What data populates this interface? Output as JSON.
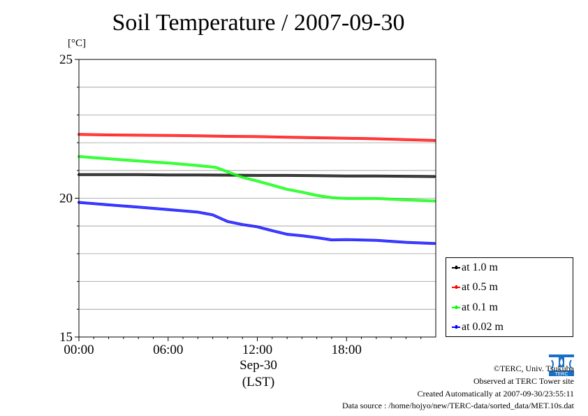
{
  "title": "Soil Temperature / 2007-09-30",
  "unit_label": "[°C]",
  "x_date_label": "Sep-30",
  "x_timezone_label": "(LST)",
  "footer": {
    "copyright": "©TERC, Univ. Tsukuba",
    "site": "Observed at TERC Tower site",
    "created": "Created Automatically at 2007-09-30/23:55:11",
    "source": "Data source : /home/hojyo/new/TERC-data/sorted_data/MET.10s.dat"
  },
  "logo_text": "TERC",
  "chart_data": {
    "type": "line",
    "title": "Soil Temperature / 2007-09-30",
    "ylabel": "[°C]",
    "xlabel": "Sep-30 (LST)",
    "x_unit": "hours",
    "xlim": [
      0,
      24
    ],
    "ylim": [
      15,
      25
    ],
    "x_ticks": [
      0,
      6,
      12,
      18
    ],
    "x_tick_labels": [
      "00:00",
      "06:00",
      "12:00",
      "18:00"
    ],
    "y_ticks": [
      15,
      20,
      25
    ],
    "y_tick_labels": [
      "15",
      "20",
      "25"
    ],
    "y_minor_ticks": [
      16,
      17,
      18,
      19,
      21,
      22,
      23,
      24
    ],
    "grid": true,
    "legend_position": "bottom-right, outside plot",
    "series": [
      {
        "name": "at 1.0 m",
        "color": "#000000",
        "x": [
          0,
          2,
          4,
          6,
          8,
          10,
          12,
          14,
          16,
          18,
          20,
          22,
          23.9
        ],
        "y": [
          20.85,
          20.85,
          20.85,
          20.84,
          20.84,
          20.83,
          20.82,
          20.82,
          20.81,
          20.8,
          20.8,
          20.79,
          20.78
        ]
      },
      {
        "name": "at 0.5 m",
        "color": "#ff0000",
        "x": [
          0,
          2,
          4,
          6,
          8,
          10,
          12,
          14,
          16,
          18,
          20,
          22,
          23.9
        ],
        "y": [
          22.3,
          22.28,
          22.27,
          22.26,
          22.25,
          22.23,
          22.22,
          22.2,
          22.18,
          22.16,
          22.14,
          22.11,
          22.08
        ]
      },
      {
        "name": "at 0.1 m",
        "color": "#00ff00",
        "x": [
          0,
          2,
          4,
          6,
          8,
          9.2,
          10,
          11,
          12,
          13,
          14,
          15,
          16,
          17,
          18,
          20,
          22,
          23.9
        ],
        "y": [
          21.5,
          21.42,
          21.34,
          21.27,
          21.18,
          21.11,
          20.95,
          20.75,
          20.62,
          20.47,
          20.32,
          20.22,
          20.1,
          20.02,
          19.99,
          19.99,
          19.94,
          19.9
        ]
      },
      {
        "name": "at 0.02 m",
        "color": "#0000ff",
        "x": [
          0,
          2,
          4,
          6,
          8,
          9,
          10,
          11,
          12,
          13,
          14,
          15,
          16,
          17,
          18,
          20,
          22,
          23.9
        ],
        "y": [
          19.85,
          19.76,
          19.68,
          19.59,
          19.5,
          19.4,
          19.16,
          19.05,
          18.97,
          18.83,
          18.7,
          18.65,
          18.58,
          18.5,
          18.51,
          18.48,
          18.41,
          18.37
        ]
      }
    ]
  }
}
